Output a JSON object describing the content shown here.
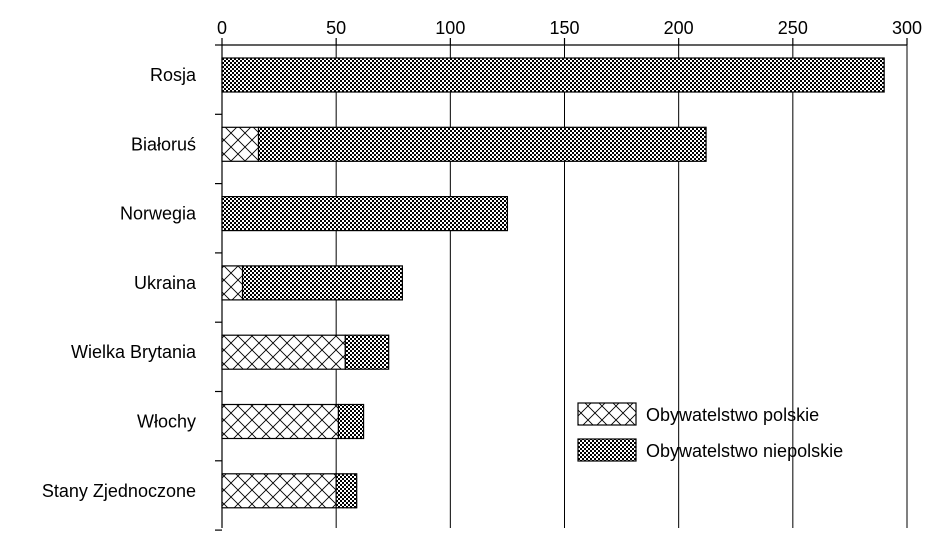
{
  "chart_data": {
    "type": "bar",
    "orientation": "horizontal",
    "stacked": true,
    "categories": [
      "Rosja",
      "Białoruś",
      "Norwegia",
      "Ukraina",
      "Wielka Brytania",
      "Włochy",
      "Stany Zjednoczone"
    ],
    "series": [
      {
        "name": "Obywatelstwo polskie",
        "values": [
          0,
          16,
          0,
          9,
          54,
          51,
          50
        ]
      },
      {
        "name": "Obywatelstwo niepolskie",
        "values": [
          290,
          196,
          125,
          70,
          19,
          11,
          9
        ]
      }
    ],
    "xlim": [
      0,
      300
    ],
    "xticks": [
      0,
      50,
      100,
      150,
      200,
      250,
      300
    ],
    "x_axis_position": "top",
    "grid": true,
    "legend_position": "bottom-right",
    "colors": {
      "bar_stroke": "#000000",
      "pattern_ink": "#000000",
      "background": "#ffffff"
    }
  }
}
